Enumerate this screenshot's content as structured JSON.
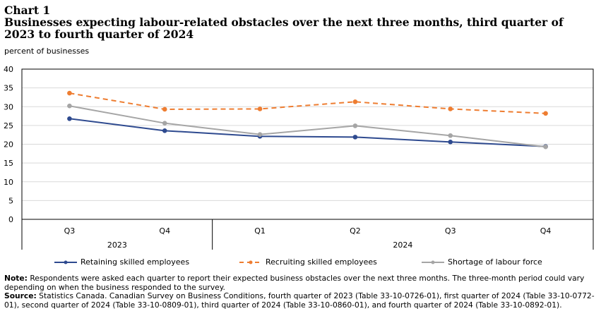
{
  "header": {
    "chart_label": "Chart 1",
    "title": "Businesses expecting labour-related obstacles over the next three months, third quarter of 2023 to fourth quarter of 2024"
  },
  "footer": {
    "note_label": "Note:",
    "note_text": " Respondents were asked each quarter to report their expected business obstacles over the next three months. The three-month period could vary depending on when the business responded to the survey.",
    "source_label": "Source:",
    "source_text": " Statistics Canada. Canadian Survey on Business Conditions, fourth quarter of 2023 (Table 33-10-0726-01), first quarter of 2024 (Table 33-10-0772-01), second quarter of 2024 (Table 33-10-0809-01), third quarter of 2024 (Table 33-10-0860-01), and fourth quarter of 2024 (Table 33-10-0892-01)."
  },
  "chart_data": {
    "type": "line",
    "title": "Businesses expecting labour-related obstacles over the next three months, third quarter of 2023 to fourth quarter of 2024",
    "ylabel": "percent of businesses",
    "xlabel": "",
    "ylim": [
      0,
      40
    ],
    "yticks": [
      0,
      5,
      10,
      15,
      20,
      25,
      30,
      35,
      40
    ],
    "grid": true,
    "legend_position": "bottom",
    "categories": [
      "Q3",
      "Q4",
      "Q1",
      "Q2",
      "Q3",
      "Q4"
    ],
    "year_groups": [
      {
        "label": "2023",
        "count": 2
      },
      {
        "label": "2024",
        "count": 4
      }
    ],
    "series": [
      {
        "name": "Retaining skilled employees",
        "color": "#2e4a8f",
        "dash": "solid",
        "values": [
          26.8,
          23.6,
          22.1,
          21.9,
          20.6,
          19.4
        ]
      },
      {
        "name": "Recruiting skilled employees",
        "color": "#ee7d31",
        "dash": "dashed",
        "values": [
          33.6,
          29.3,
          29.4,
          31.3,
          29.4,
          28.2
        ]
      },
      {
        "name": "Shortage of labour force",
        "color": "#a5a5a5",
        "dash": "solid",
        "values": [
          30.2,
          25.6,
          22.6,
          24.9,
          22.3,
          19.3
        ]
      }
    ]
  }
}
